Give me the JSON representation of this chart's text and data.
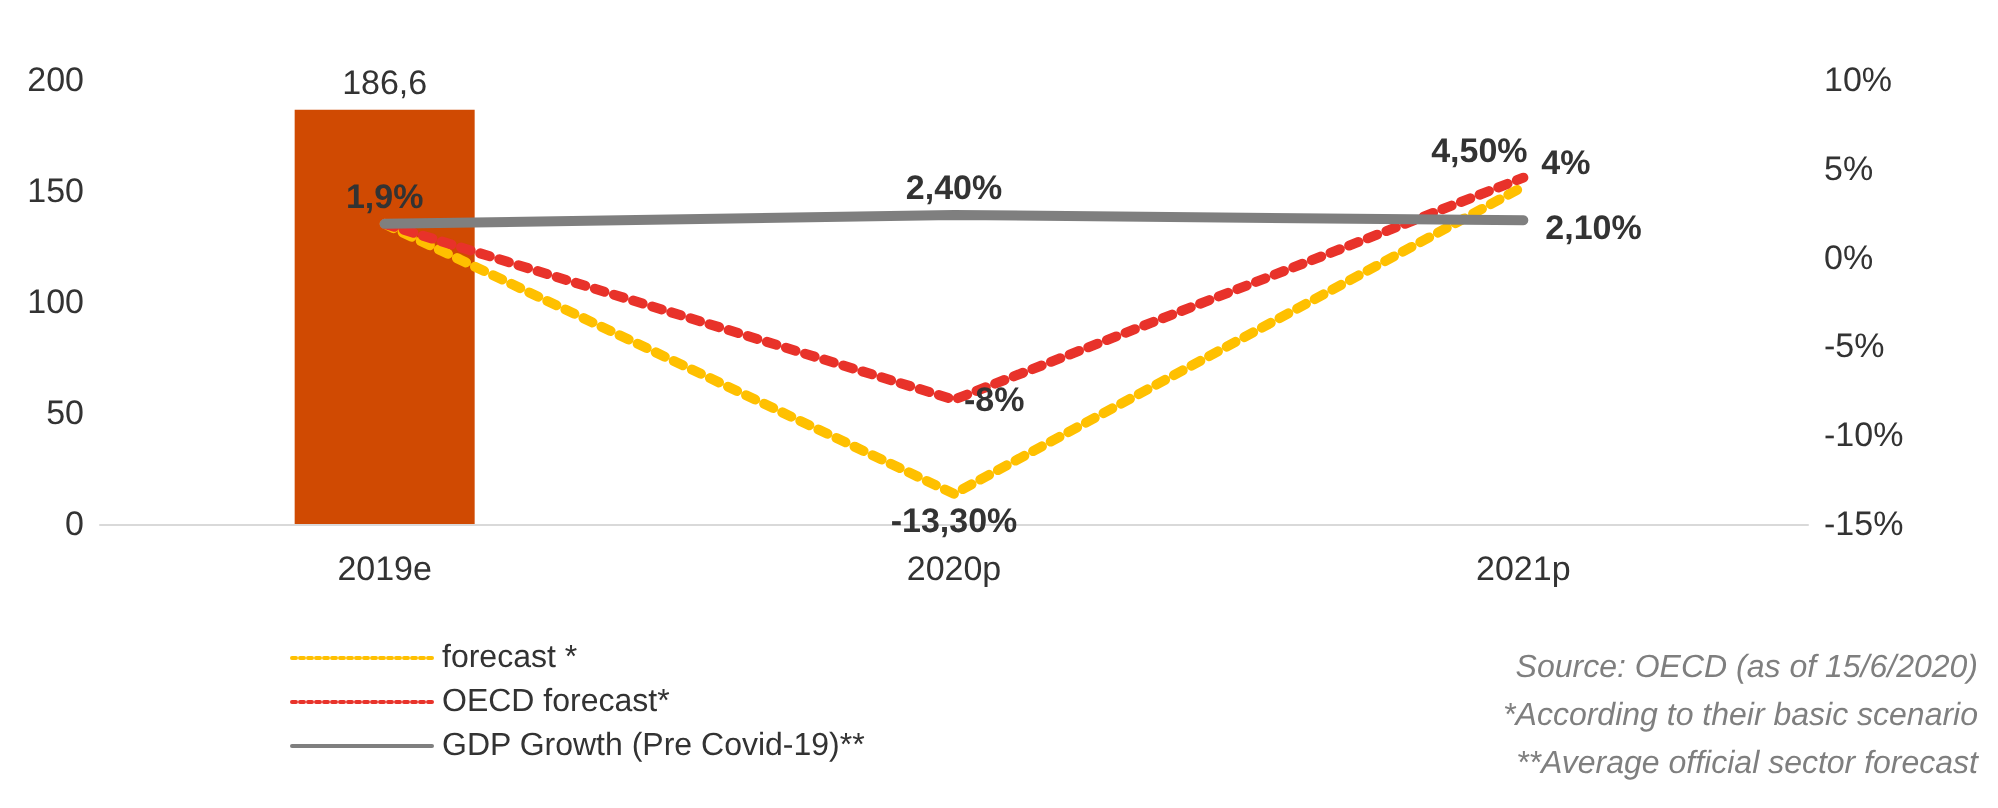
{
  "chart_data": {
    "type": "bar",
    "categories": [
      "2019e",
      "2020p",
      "2021p"
    ],
    "series": [
      {
        "color": "#d04a02",
        "values": [
          186.6,
          null,
          null
        ],
        "value_labels": [
          "186,6",
          null,
          null
        ]
      },
      {
        "type": "line",
        "name": "forecast *",
        "color": "#ffc000",
        "axis": "y2",
        "line_style": "dotted",
        "values": [
          1.9,
          -13.3,
          4
        ],
        "value_labels": [
          null,
          "-13,30%",
          "4%"
        ]
      },
      {
        "type": "line",
        "name": "OECD forecast*",
        "color": "#e8322a",
        "axis": "y2",
        "line_style": "dotted",
        "values": [
          1.9,
          -8,
          4.5
        ],
        "value_labels": [
          null,
          "-8%",
          "4,50%"
        ]
      },
      {
        "type": "line",
        "name": "GDP Growth (Pre Covid-19)**",
        "color": "#7f7f7f",
        "axis": "y2",
        "line_style": "solid",
        "values": [
          1.9,
          2.4,
          2.1
        ],
        "value_labels": [
          "1,9%",
          "2,40%",
          "2,10%"
        ]
      }
    ],
    "ylim": [
      0,
      200
    ],
    "yticks": [
      0,
      50,
      100,
      150,
      200
    ],
    "y2lim": [
      -15,
      10
    ],
    "y2ticks": [
      {
        "value": -15,
        "label": "-15%"
      },
      {
        "value": -10,
        "label": "-10%"
      },
      {
        "value": -5,
        "label": "-5%"
      },
      {
        "value": 0,
        "label": "0%"
      },
      {
        "value": 5,
        "label": "5%"
      },
      {
        "value": 10,
        "label": "10%"
      }
    ],
    "grid": false,
    "legend": "bottom left",
    "marker": "none",
    "annotations": [
      "Source: OECD (as of 15/6/2020)",
      "*According to their basic scenario",
      "**Average official sector forecast"
    ]
  }
}
